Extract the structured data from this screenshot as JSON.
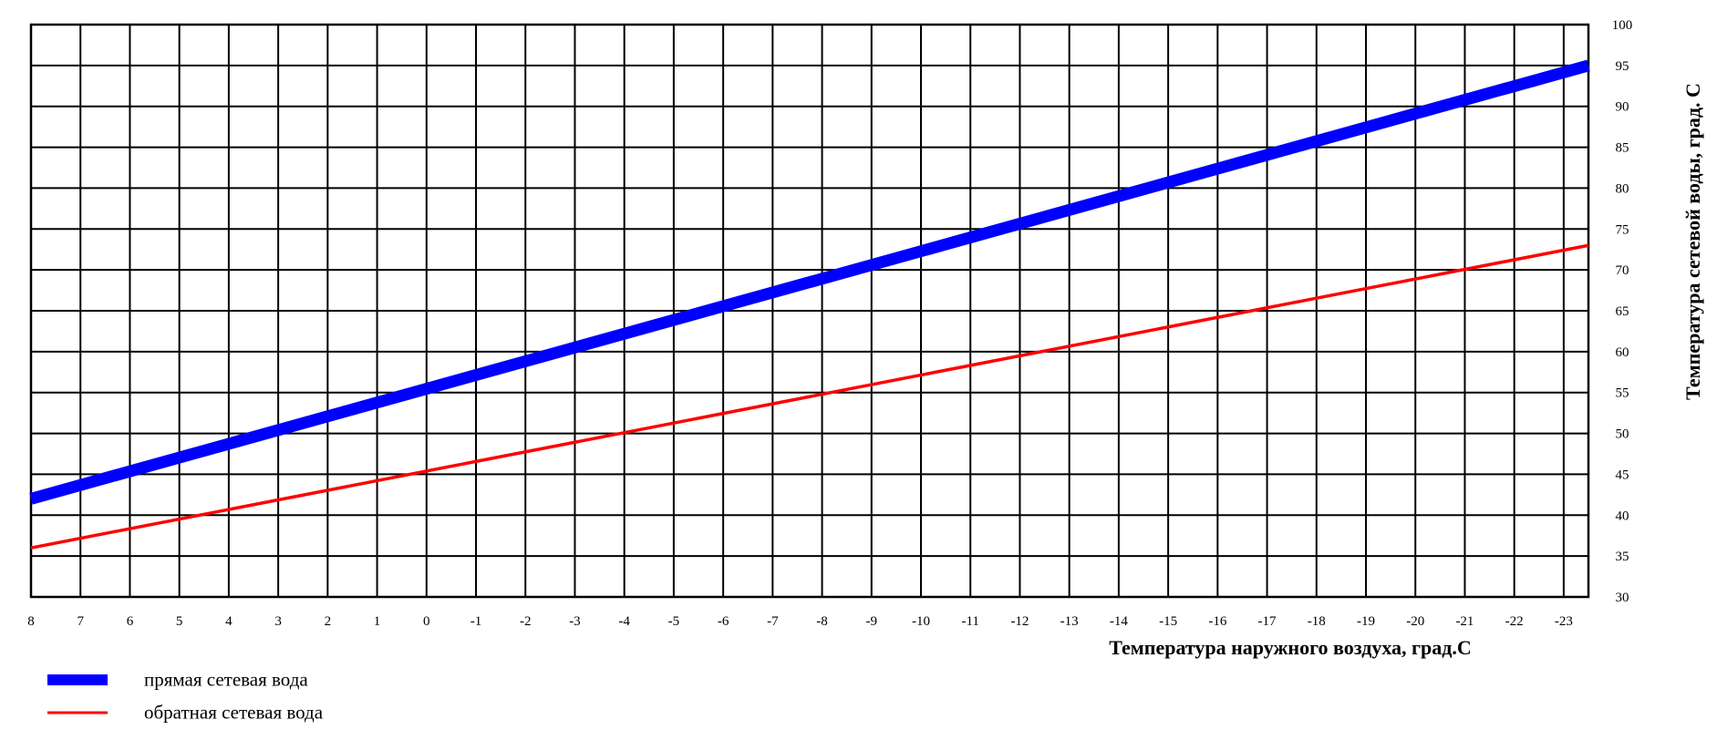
{
  "chart_data": {
    "type": "line",
    "title": "",
    "xlabel": "Температура наружного воздуха, град.С",
    "ylabel": "Температура сетевой воды, град. С",
    "x_tick_labels": [
      "8",
      "7",
      "6",
      "5",
      "4",
      "3",
      "2",
      "1",
      "0",
      "-1",
      "-2",
      "-3",
      "-4",
      "-5",
      "-6",
      "-7",
      "-8",
      "-9",
      "-10",
      "-11",
      "-12",
      "-13",
      "-14",
      "-15",
      "-16",
      "-17",
      "-18",
      "-19",
      "-20",
      "-21",
      "-22",
      "-23"
    ],
    "y_tick_labels": [
      "30",
      "35",
      "40",
      "45",
      "50",
      "55",
      "60",
      "65",
      "70",
      "75",
      "80",
      "85",
      "90",
      "95",
      "100"
    ],
    "xlim": [
      8,
      -23.5
    ],
    "ylim": [
      30,
      100
    ],
    "grid": true,
    "series": [
      {
        "name": "прямая сетевая вода",
        "color": "#0000ff",
        "x": [
          8,
          -23.5
        ],
        "y": [
          42,
          95
        ]
      },
      {
        "name": "обратная сетевая вода",
        "color": "#ff0000",
        "x": [
          8,
          -23.5
        ],
        "y": [
          36,
          73
        ]
      }
    ],
    "legend_position": "bottom-left"
  }
}
